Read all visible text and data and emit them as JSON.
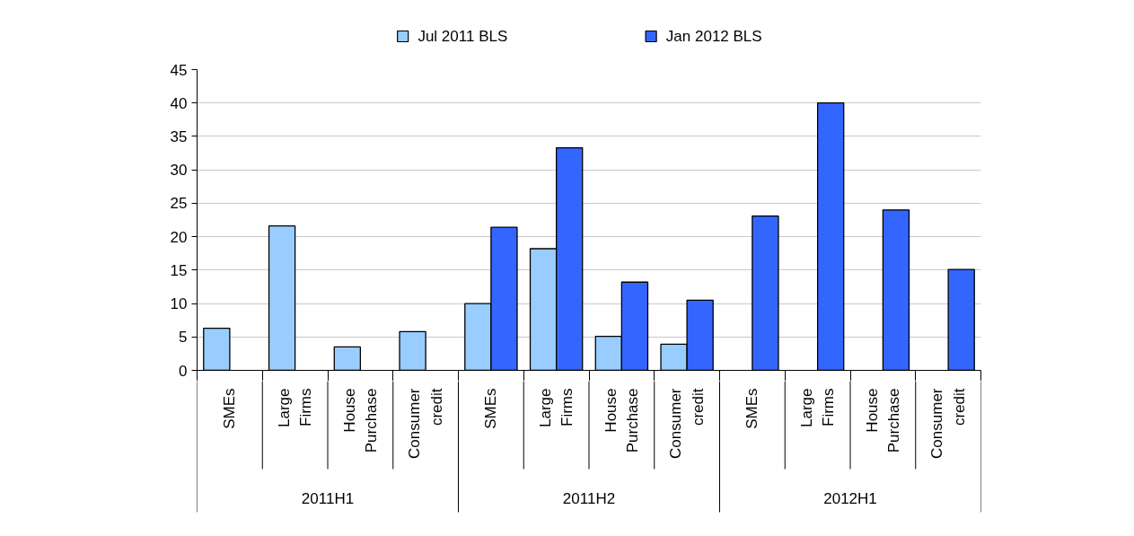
{
  "chart_data": {
    "type": "bar",
    "categories": [
      "SMEs",
      "Large Firms",
      "House Purchase",
      "Consumer credit",
      "SMEs",
      "Large Firms",
      "House Purchase",
      "Consumer credit",
      "SMEs",
      "Large Firms",
      "House Purchase",
      "Consumer credit"
    ],
    "series": [
      {
        "name": "Jul 2011 BLS",
        "color": "#99ccff",
        "values": [
          6.3,
          21.6,
          3.5,
          5.8,
          10.0,
          18.2,
          5.1,
          3.9,
          null,
          null,
          null,
          null
        ]
      },
      {
        "name": "Jan 2012 BLS",
        "color": "#3366ff",
        "values": [
          null,
          null,
          null,
          null,
          21.4,
          33.3,
          13.2,
          10.5,
          23.1,
          40.0,
          24.0,
          15.1
        ]
      }
    ],
    "ylim": [
      0,
      45
    ],
    "yticks": [
      0,
      5,
      10,
      15,
      20,
      25,
      30,
      35,
      40,
      45
    ],
    "grid": "y",
    "legend": "top",
    "annotations": [
      "2011H1",
      "2011H2",
      "2012H1"
    ]
  }
}
